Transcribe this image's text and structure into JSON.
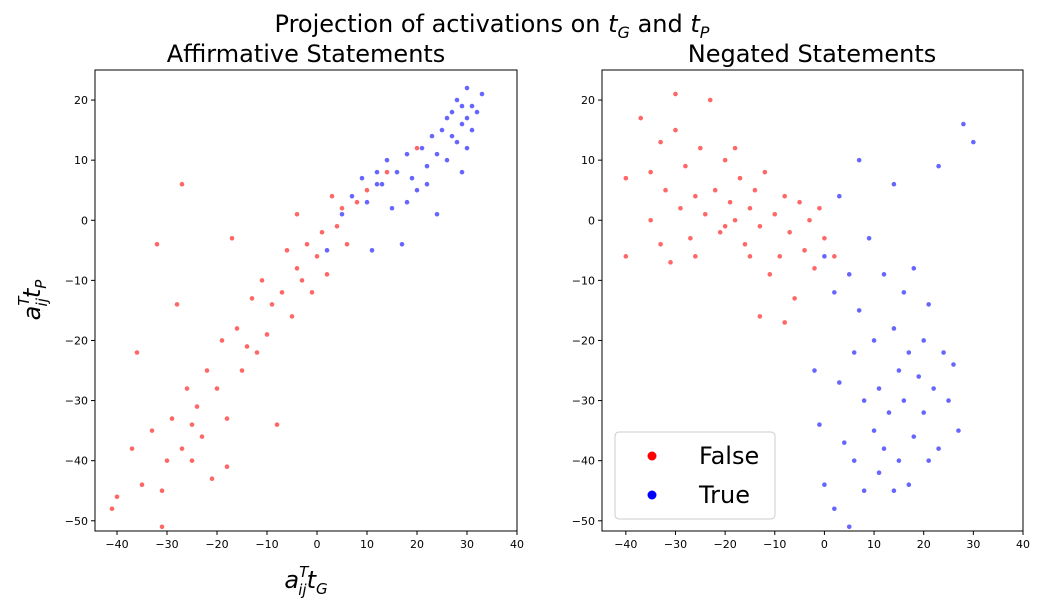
{
  "chart_data": {
    "title": {
      "prefix": "Projection of activations on ",
      "t1": "t",
      "t1_sub": "G",
      "mid": " and ",
      "t2": "t",
      "t2_sub": "P"
    },
    "colors": {
      "False": "#ff0000",
      "True": "#0000ff"
    },
    "panels": [
      {
        "type": "scatter",
        "title": "Affirmative Statements",
        "xlabel": {
          "a": "a",
          "sup": "T",
          "sub": "ij",
          "t": "t",
          "tsub": "G"
        },
        "ylabel": {
          "a": "a",
          "sup": "T",
          "sub": "ij",
          "t": "t",
          "tsub": "P"
        },
        "xlim": [
          -44.4,
          40
        ],
        "ylim": [
          -51.7,
          25
        ],
        "xticks": [
          -40,
          -30,
          -20,
          -10,
          0,
          10,
          20,
          30,
          40
        ],
        "yticks": [
          -50,
          -40,
          -30,
          -20,
          -10,
          0,
          10,
          20
        ],
        "series": [
          {
            "name": "False",
            "points": [
              [
                -41,
                -48
              ],
              [
                -40,
                -46
              ],
              [
                -37,
                -38
              ],
              [
                -36,
                -22
              ],
              [
                -35,
                -44
              ],
              [
                -33,
                -35
              ],
              [
                -32,
                -4
              ],
              [
                -31,
                -45
              ],
              [
                -31,
                -51
              ],
              [
                -30,
                -40
              ],
              [
                -29,
                -33
              ],
              [
                -28,
                -14
              ],
              [
                -27,
                6
              ],
              [
                -27,
                -38
              ],
              [
                -26,
                -28
              ],
              [
                -25,
                -34
              ],
              [
                -24,
                -31
              ],
              [
                -23,
                -36
              ],
              [
                -22,
                -25
              ],
              [
                -21,
                -43
              ],
              [
                -20,
                -28
              ],
              [
                -19,
                -20
              ],
              [
                -18,
                -33
              ],
              [
                -17,
                -3
              ],
              [
                -16,
                -18
              ],
              [
                -15,
                -25
              ],
              [
                -14,
                -21
              ],
              [
                -13,
                -13
              ],
              [
                -12,
                -22
              ],
              [
                -11,
                -10
              ],
              [
                -10,
                -19
              ],
              [
                -9,
                -14
              ],
              [
                -8,
                -34
              ],
              [
                -7,
                -12
              ],
              [
                -6,
                -5
              ],
              [
                -5,
                -16
              ],
              [
                -4,
                -8
              ],
              [
                -3,
                -10
              ],
              [
                -2,
                -4
              ],
              [
                -1,
                -12
              ],
              [
                0,
                -6
              ],
              [
                1,
                -2
              ],
              [
                2,
                -9
              ],
              [
                3,
                4
              ],
              [
                4,
                -1
              ],
              [
                5,
                2
              ],
              [
                6,
                -4
              ],
              [
                8,
                3
              ],
              [
                10,
                5
              ],
              [
                14,
                8
              ],
              [
                20,
                12
              ],
              [
                -4,
                1
              ],
              [
                -18,
                -41
              ],
              [
                -25,
                -40
              ]
            ]
          },
          {
            "name": "True",
            "points": [
              [
                2,
                -5
              ],
              [
                5,
                1
              ],
              [
                7,
                4
              ],
              [
                9,
                7
              ],
              [
                10,
                3
              ],
              [
                11,
                -5
              ],
              [
                12,
                8
              ],
              [
                13,
                6
              ],
              [
                14,
                10
              ],
              [
                15,
                2
              ],
              [
                16,
                8
              ],
              [
                17,
                -4
              ],
              [
                18,
                11
              ],
              [
                19,
                7
              ],
              [
                20,
                5
              ],
              [
                21,
                12
              ],
              [
                22,
                9
              ],
              [
                23,
                14
              ],
              [
                24,
                11
              ],
              [
                25,
                15
              ],
              [
                26,
                10
              ],
              [
                27,
                18
              ],
              [
                27,
                14
              ],
              [
                28,
                20
              ],
              [
                28,
                13
              ],
              [
                29,
                16
              ],
              [
                29,
                19
              ],
              [
                30,
                17
              ],
              [
                30,
                22
              ],
              [
                31,
                15
              ],
              [
                31,
                19
              ],
              [
                32,
                18
              ],
              [
                33,
                21
              ],
              [
                24,
                1
              ],
              [
                26,
                17
              ],
              [
                30,
                12
              ],
              [
                29,
                8
              ],
              [
                12,
                6
              ],
              [
                18,
                3
              ],
              [
                22,
                6
              ]
            ]
          }
        ]
      },
      {
        "type": "scatter",
        "title": "Negated Statements",
        "xlim": [
          -44.8,
          40
        ],
        "ylim": [
          -51.7,
          25
        ],
        "xticks": [
          -40,
          -30,
          -20,
          -10,
          0,
          10,
          20,
          30,
          40
        ],
        "yticks": [
          -50,
          -40,
          -30,
          -20,
          -10,
          0,
          10,
          20
        ],
        "legend": {
          "placement": "lower-left",
          "entries": [
            "False",
            "True"
          ]
        },
        "series": [
          {
            "name": "False",
            "points": [
              [
                -40,
                7
              ],
              [
                -40,
                -6
              ],
              [
                -37,
                17
              ],
              [
                -35,
                8
              ],
              [
                -35,
                0
              ],
              [
                -33,
                -4
              ],
              [
                -32,
                5
              ],
              [
                -31,
                -7
              ],
              [
                -30,
                21
              ],
              [
                -30,
                15
              ],
              [
                -29,
                2
              ],
              [
                -28,
                9
              ],
              [
                -27,
                -3
              ],
              [
                -26,
                4
              ],
              [
                -25,
                12
              ],
              [
                -24,
                1
              ],
              [
                -23,
                20
              ],
              [
                -22,
                5
              ],
              [
                -21,
                -2
              ],
              [
                -20,
                10
              ],
              [
                -19,
                3
              ],
              [
                -18,
                0
              ],
              [
                -17,
                7
              ],
              [
                -16,
                -4
              ],
              [
                -15,
                2
              ],
              [
                -14,
                5
              ],
              [
                -13,
                -1
              ],
              [
                -12,
                8
              ],
              [
                -11,
                -9
              ],
              [
                -10,
                1
              ],
              [
                -9,
                -6
              ],
              [
                -8,
                4
              ],
              [
                -7,
                -2
              ],
              [
                -6,
                -13
              ],
              [
                -5,
                3
              ],
              [
                -4,
                -5
              ],
              [
                -3,
                0
              ],
              [
                -2,
                -8
              ],
              [
                -1,
                2
              ],
              [
                0,
                -3
              ],
              [
                2,
                -6
              ],
              [
                -13,
                -16
              ],
              [
                -8,
                -17
              ],
              [
                -26,
                -6
              ],
              [
                -18,
                12
              ],
              [
                -33,
                13
              ],
              [
                -20,
                -1
              ],
              [
                -15,
                -6
              ]
            ]
          },
          {
            "name": "True",
            "points": [
              [
                -1,
                -34
              ],
              [
                0,
                -44
              ],
              [
                0,
                -6
              ],
              [
                2,
                -12
              ],
              [
                2,
                -48
              ],
              [
                3,
                -27
              ],
              [
                4,
                -37
              ],
              [
                5,
                -51
              ],
              [
                5,
                -9
              ],
              [
                6,
                -22
              ],
              [
                6,
                -40
              ],
              [
                7,
                -15
              ],
              [
                8,
                -30
              ],
              [
                8,
                -45
              ],
              [
                9,
                -3
              ],
              [
                10,
                -35
              ],
              [
                10,
                -20
              ],
              [
                11,
                -42
              ],
              [
                11,
                -28
              ],
              [
                12,
                -9
              ],
              [
                12,
                -38
              ],
              [
                13,
                -32
              ],
              [
                14,
                -45
              ],
              [
                14,
                -18
              ],
              [
                15,
                -25
              ],
              [
                15,
                -40
              ],
              [
                16,
                -12
              ],
              [
                16,
                -30
              ],
              [
                17,
                -22
              ],
              [
                18,
                -36
              ],
              [
                18,
                -8
              ],
              [
                19,
                -26
              ],
              [
                20,
                -20
              ],
              [
                20,
                -32
              ],
              [
                21,
                -14
              ],
              [
                22,
                -28
              ],
              [
                23,
                -38
              ],
              [
                24,
                -22
              ],
              [
                25,
                -30
              ],
              [
                26,
                -24
              ],
              [
                27,
                -35
              ],
              [
                28,
                16
              ],
              [
                30,
                13
              ],
              [
                23,
                9
              ],
              [
                7,
                10
              ],
              [
                14,
                6
              ],
              [
                3,
                4
              ],
              [
                -2,
                -25
              ],
              [
                17,
                -44
              ],
              [
                21,
                -40
              ]
            ]
          }
        ]
      }
    ]
  }
}
